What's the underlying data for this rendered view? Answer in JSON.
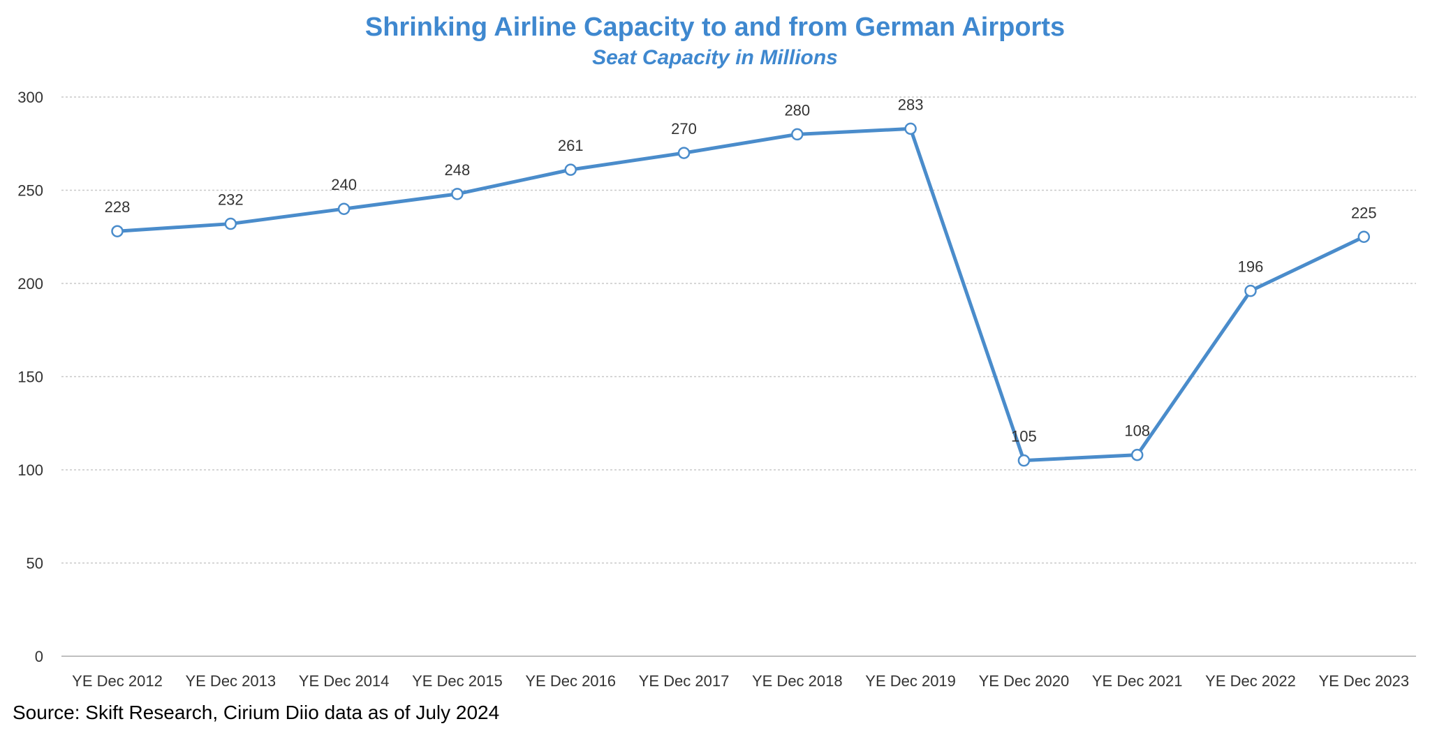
{
  "chart_data": {
    "type": "line",
    "title": "Shrinking Airline Capacity to and from German Airports",
    "subtitle": "Seat Capacity in Millions",
    "xlabel": "",
    "ylabel": "",
    "categories": [
      "YE Dec 2012",
      "YE Dec 2013",
      "YE Dec 2014",
      "YE Dec 2015",
      "YE Dec 2016",
      "YE Dec 2017",
      "YE Dec 2018",
      "YE Dec 2019",
      "YE Dec 2020",
      "YE Dec 2021",
      "YE Dec 2022",
      "YE Dec 2023"
    ],
    "series": [
      {
        "values": [
          228,
          232,
          240,
          248,
          261,
          270,
          280,
          283,
          105,
          108,
          196,
          225
        ]
      }
    ],
    "data_labels": [
      "228",
      "232",
      "240",
      "248",
      "261",
      "270",
      "280",
      "283",
      "105",
      "108",
      "196",
      "225"
    ],
    "yticks": [
      0,
      50,
      100,
      150,
      200,
      250,
      300
    ],
    "ylim": [
      0,
      300
    ],
    "grid": true,
    "legend": false,
    "colors": {
      "line": "#4a8ccb",
      "title": "#3f88cf",
      "grid": "#c8c8c8",
      "axis": "#bfbfbf",
      "text": "#333333"
    }
  },
  "footer": {
    "source": "Source: Skift Research, Cirium Diio data as of July 2024"
  }
}
